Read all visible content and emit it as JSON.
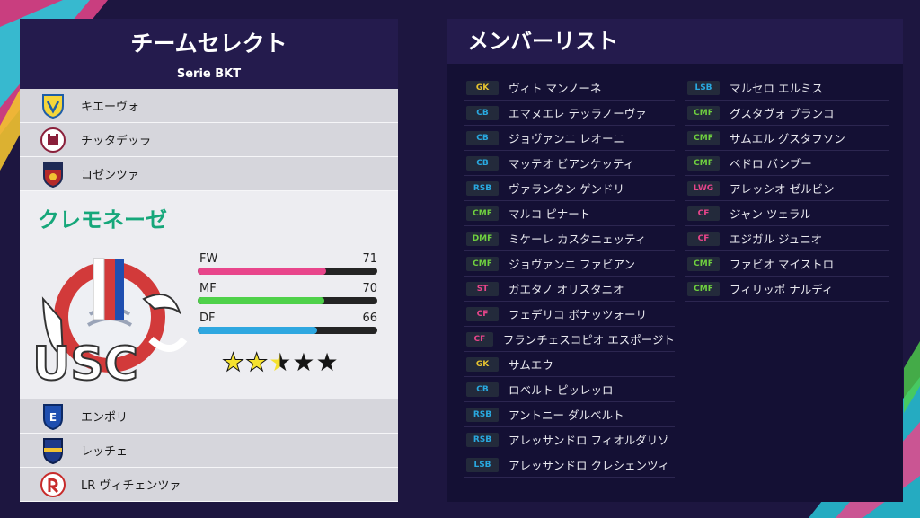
{
  "left_panel": {
    "title": "チームセレクト",
    "league": "Serie BKT",
    "teams_above": [
      {
        "name": "キエーヴォ",
        "icon": "chievo-crest-icon"
      },
      {
        "name": "チッタデッラ",
        "icon": "cittadella-crest-icon"
      },
      {
        "name": "コゼンツァ",
        "icon": "cosenza-crest-icon"
      }
    ],
    "selected_team": {
      "name": "クレモネーゼ",
      "logo": "cremonese-logo",
      "logo_text": "USC",
      "stats": [
        {
          "label": "FW",
          "value": 71,
          "color": "#e8458b"
        },
        {
          "label": "MF",
          "value": 70,
          "color": "#4fd14a"
        },
        {
          "label": "DF",
          "value": 66,
          "color": "#2ea7e0"
        }
      ],
      "rating": {
        "value": 2.5,
        "max": 5
      }
    },
    "teams_below": [
      {
        "name": "エンポリ",
        "icon": "empoli-crest-icon"
      },
      {
        "name": "レッチェ",
        "icon": "lecce-crest-icon"
      },
      {
        "name": "LR ヴィチェンツァ",
        "icon": "lr-vicenza-crest-icon"
      }
    ]
  },
  "right_panel": {
    "title": "メンバーリスト",
    "players_left": [
      {
        "pos": "GK",
        "name": "ヴィト マンノーネ",
        "color": "#e6c430"
      },
      {
        "pos": "CB",
        "name": "エマヌエレ テッラノーヴァ",
        "color": "#29a9e0"
      },
      {
        "pos": "CB",
        "name": "ジョヴァンニ レオーニ",
        "color": "#29a9e0"
      },
      {
        "pos": "CB",
        "name": "マッテオ ビアンケッティ",
        "color": "#29a9e0"
      },
      {
        "pos": "RSB",
        "name": "ヴァランタン ゲンドリ",
        "color": "#29a9e0"
      },
      {
        "pos": "CMF",
        "name": "マルコ ピナート",
        "color": "#6fd13f"
      },
      {
        "pos": "DMF",
        "name": "ミケーレ カスタニェッティ",
        "color": "#6fd13f"
      },
      {
        "pos": "CMF",
        "name": "ジョヴァンニ ファビアン",
        "color": "#6fd13f"
      },
      {
        "pos": "ST",
        "name": "ガエタノ オリスタニオ",
        "color": "#e8458b"
      },
      {
        "pos": "CF",
        "name": "フェデリコ ボナッツォーリ",
        "color": "#e8458b"
      },
      {
        "pos": "CF",
        "name": "フランチェスコピオ エスポージト",
        "color": "#e8458b"
      },
      {
        "pos": "GK",
        "name": "サムエウ",
        "color": "#e6c430"
      },
      {
        "pos": "CB",
        "name": "ロベルト ピッレッロ",
        "color": "#29a9e0"
      },
      {
        "pos": "RSB",
        "name": "アントニー ダルベルト",
        "color": "#29a9e0"
      },
      {
        "pos": "RSB",
        "name": "アレッサンドロ フィオルダリゾ",
        "color": "#29a9e0"
      },
      {
        "pos": "LSB",
        "name": "アレッサンドロ クレシェンツィ",
        "color": "#29a9e0"
      }
    ],
    "players_right": [
      {
        "pos": "LSB",
        "name": "マルセロ エルミス",
        "color": "#29a9e0"
      },
      {
        "pos": "CMF",
        "name": "グスタヴォ ブランコ",
        "color": "#6fd13f"
      },
      {
        "pos": "CMF",
        "name": "サムエル グスタフソン",
        "color": "#6fd13f"
      },
      {
        "pos": "CMF",
        "name": "ペドロ バンブー",
        "color": "#6fd13f"
      },
      {
        "pos": "LWG",
        "name": "アレッシオ ゼルビン",
        "color": "#e8458b"
      },
      {
        "pos": "CF",
        "name": "ジャン ツェラル",
        "color": "#e8458b"
      },
      {
        "pos": "CF",
        "name": "エジガル ジュニオ",
        "color": "#e8458b"
      },
      {
        "pos": "CMF",
        "name": "ファビオ マイストロ",
        "color": "#6fd13f"
      },
      {
        "pos": "CMF",
        "name": "フィリッポ ナルディ",
        "color": "#6fd13f"
      }
    ]
  },
  "colors": {
    "background": "#1d1640",
    "accent_green": "#16a77a",
    "accent_pink": "#e8458b",
    "accent_cyan": "#27c6d8"
  }
}
